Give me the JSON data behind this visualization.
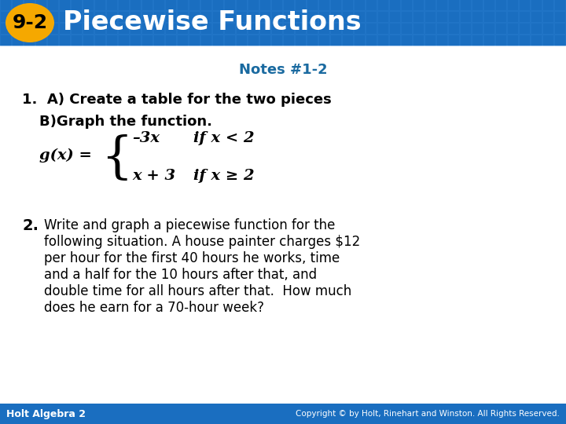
{
  "header_bg_color": "#1a6ec0",
  "header_text_color": "#ffffff",
  "badge_bg_color": "#f5a800",
  "badge_text": "9-2",
  "header_title": "Piecewise Functions",
  "notes_title": "Notes #1-2",
  "notes_title_color": "#1a6aa0",
  "item1_a": "1.  A) Create a table for the two pieces",
  "item1_b": "B)Graph the function.",
  "piece1_expr": "–3x",
  "piece1_cond": "if x < 2",
  "piece2_expr": "x + 3",
  "piece2_cond": "if x ≥ 2",
  "item2_text_lines": [
    "Write and graph a piecewise function for the",
    "following situation. A house painter charges $12",
    "per hour for the first 40 hours he works, time",
    "and a half for the 10 hours after that, and",
    "double time for all hours after that.  How much",
    "does he earn for a 70-hour week?"
  ],
  "footer_left": "Holt Algebra 2",
  "footer_right": "Copyright © by Holt, Rinehart and Winston. All Rights Reserved.",
  "footer_bg_color": "#1a6ec0",
  "footer_text_color": "#ffffff",
  "body_bg_color": "#ffffff",
  "main_text_color": "#000000",
  "header_grid_color": "#2a7ed0"
}
